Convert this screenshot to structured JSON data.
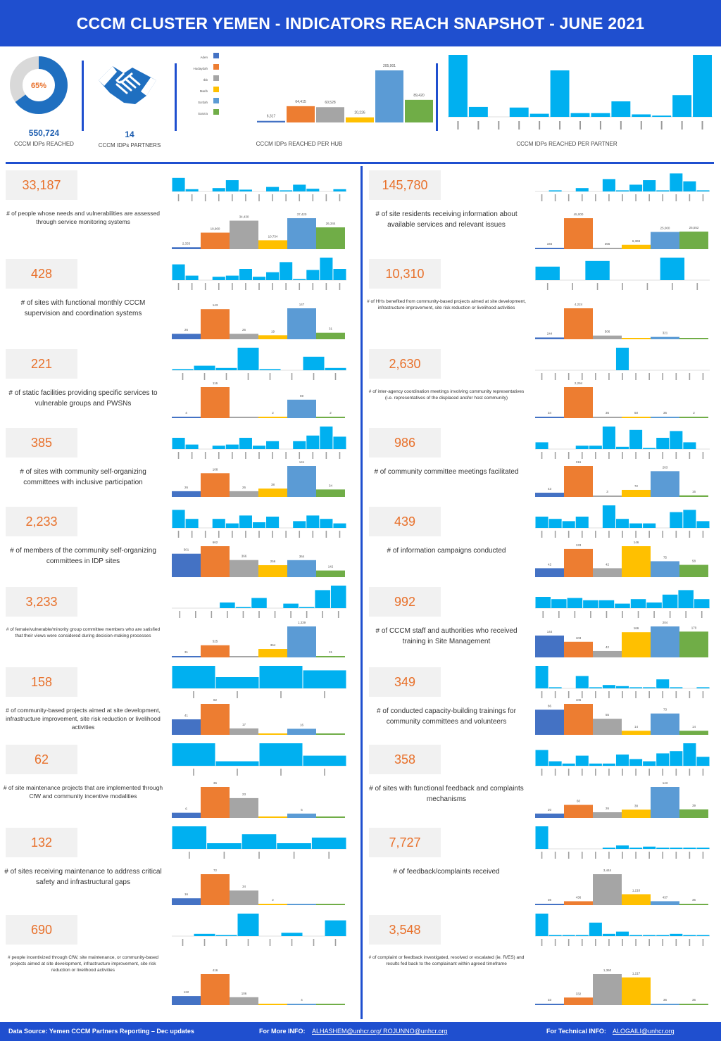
{
  "header": {
    "title": "CCCM CLUSTER YEMEN - INDICATORS REACH SNAPSHOT - JUNE 2021"
  },
  "summary": {
    "donut": {
      "percent_label": "65%",
      "fraction": 0.65,
      "fill": "#1f6fc0",
      "rest": "#d9d9d9"
    },
    "reached_value": "550,724",
    "reached_label": "CCCM IDPs REACHED",
    "partners_value": "14",
    "partners_label": "CCCM IDPs PARTNERS",
    "icon": "handshake-icon"
  },
  "hub_chart": {
    "caption": "CCCM IDPs REACHED PER HUB",
    "legend_labels": [
      "Aden",
      "Hudaydah",
      "Ibb",
      "Marib",
      "Sa'dah",
      "Sana'a"
    ],
    "chart_data": {
      "type": "bar",
      "categories": [
        "Aden",
        "Hudaydah",
        "Ibb",
        "Marib",
        "Sa'dah",
        "Sana'a"
      ],
      "values": [
        6317,
        64415,
        60528,
        20226,
        205901,
        89420
      ],
      "value_labels": [
        "6,317",
        "64,415",
        "60,528",
        "20,226",
        "205,901",
        "89,420"
      ],
      "colors": [
        "#4472c4",
        "#ed7d31",
        "#a5a5a5",
        "#ffc000",
        "#5b9bd5",
        "#70ad47"
      ]
    }
  },
  "partner_chart": {
    "caption": "CCCM IDPs REACHED PER PARTNER",
    "chart_data": {
      "type": "bar",
      "values": [
        100,
        16,
        0,
        15,
        5,
        75,
        6,
        6,
        25,
        4,
        2,
        35,
        100
      ],
      "color": "#00b0f0"
    }
  },
  "indicators": [
    {
      "value": "33,187",
      "desc": "# of people whose needs and vulnerabilities are assessed through service monitoring systems",
      "partners": [
        60,
        10,
        0,
        15,
        50,
        8,
        0,
        20,
        5,
        30,
        12,
        0,
        10
      ],
      "hubs": [
        2333,
        19960,
        34430,
        10734,
        37420,
        26344
      ],
      "hub_labels": [
        "2,333",
        "19,960",
        "34,430",
        "10,734",
        "37,420",
        "26,344"
      ]
    },
    {
      "value": "145,780",
      "desc": "# of site residents receiving information about available services and relevant issues",
      "partners": [
        0,
        5,
        0,
        15,
        0,
        55,
        5,
        30,
        50,
        5,
        80,
        45,
        5
      ],
      "hubs": [
        346,
        45000,
        356,
        6369,
        25000,
        25552
      ],
      "hub_labels": [
        "346",
        "45,000",
        "356",
        "6,369",
        "25,000",
        "25,552"
      ]
    },
    {
      "value": "428",
      "desc": "# of sites with functional monthly CCCM supervision and coordination systems",
      "partners": [
        70,
        20,
        0,
        15,
        20,
        50,
        15,
        35,
        80,
        5,
        45,
        100,
        50
      ],
      "hubs": [
        26,
        143,
        26,
        19,
        147,
        31
      ],
      "hub_labels": [
        "26",
        "143",
        "26",
        "19",
        "147",
        "31"
      ]
    },
    {
      "value": "10,310",
      "desc": "# of HHs benefited from community-based projects aimed at site development, infrastructure improvement, site risk reduction or livelihood activities",
      "partners": [
        60,
        0,
        85,
        0,
        0,
        100,
        0
      ],
      "hubs": [
        244,
        4224,
        506,
        0,
        321,
        0
      ],
      "hub_labels": [
        "244",
        "4,224",
        "506",
        "",
        "321",
        ""
      ]
    },
    {
      "value": "221",
      "desc": "# of static facilities providing specific services to vulnerable groups and PWSNs",
      "partners": [
        5,
        20,
        10,
        100,
        5,
        0,
        60,
        10
      ],
      "hubs": [
        4,
        116,
        0,
        2,
        69,
        2
      ],
      "hub_labels": [
        "4",
        "116",
        "",
        "2",
        "69",
        "2"
      ]
    },
    {
      "value": "2,630",
      "desc": "# of inter-agency coordination meetings involving community representatives (i.e. representatives of the displaced and/or host community)",
      "partners": [
        0,
        0,
        0,
        0,
        0,
        0,
        100,
        0,
        0,
        0,
        0,
        0,
        0
      ],
      "hubs": [
        34,
        2294,
        36,
        50,
        36,
        2
      ],
      "hub_labels": [
        "34",
        "2,294",
        "36",
        "50",
        "36",
        "2"
      ]
    },
    {
      "value": "385",
      "desc": "# of sites with community self-organizing committees with inclusive participation",
      "partners": [
        50,
        20,
        0,
        15,
        20,
        50,
        15,
        35,
        0,
        35,
        60,
        100,
        55
      ],
      "hubs": [
        26,
        108,
        26,
        38,
        141,
        34
      ],
      "hub_labels": [
        "26",
        "108",
        "26",
        "38",
        "141",
        "34"
      ]
    },
    {
      "value": "986",
      "desc": "# of community committee meetings facilitated",
      "partners": [
        30,
        0,
        0,
        15,
        15,
        100,
        10,
        85,
        5,
        50,
        80,
        30,
        0
      ],
      "hubs": [
        43,
        316,
        3,
        72,
        263,
        16
      ],
      "hub_labels": [
        "43",
        "316",
        "3",
        "72",
        "263",
        "16"
      ]
    },
    {
      "value": "2,233",
      "desc": "# of members of the community self-organizing committees in IDP sites",
      "partners": [
        80,
        40,
        0,
        40,
        20,
        55,
        25,
        50,
        0,
        30,
        55,
        40,
        20
      ],
      "hubs": [
        501,
        662,
        366,
        256,
        364,
        142
      ],
      "hub_labels": [
        "501",
        "662",
        "366",
        "256",
        "364",
        "142"
      ]
    },
    {
      "value": "439",
      "desc": "# of information campaigns conducted",
      "partners": [
        50,
        40,
        30,
        50,
        0,
        100,
        40,
        20,
        20,
        0,
        70,
        80,
        30
      ],
      "hubs": [
        42,
        133,
        42,
        146,
        75,
        58
      ],
      "hub_labels": [
        "42",
        "133",
        "42",
        "146",
        "75",
        "58"
      ]
    },
    {
      "value": "3,233",
      "desc": "# of female/vulnerable/minority group committee members who are satisfied that their views were considered during decision-making processes",
      "partners": [
        0,
        0,
        0,
        25,
        5,
        45,
        0,
        20,
        5,
        80,
        100
      ],
      "hubs": [
        31,
        525,
        0,
        364,
        1339,
        31
      ],
      "hub_labels": [
        "31",
        "525",
        "",
        "364",
        "1,339",
        "31"
      ]
    },
    {
      "value": "992",
      "desc": "# of CCCM staff and authorities who received training in Site Management",
      "partners": [
        50,
        40,
        45,
        35,
        35,
        20,
        40,
        25,
        60,
        80,
        40
      ],
      "hubs": [
        144,
        103,
        42,
        166,
        204,
        170
      ],
      "hub_labels": [
        "144",
        "103",
        "42",
        "166",
        "204",
        "170"
      ]
    },
    {
      "value": "158",
      "desc": "# of community-based projects aimed at site development, infrastructure improvement, site risk reduction or livelihood activities",
      "partners": [
        100,
        50,
        100,
        80
      ],
      "hubs": [
        41,
        82,
        17,
        0,
        16,
        0
      ],
      "hub_labels": [
        "41",
        "82",
        "17",
        "",
        "16",
        ""
      ]
    },
    {
      "value": "349",
      "desc": "# of conducted capacity-building trainings for community committees and volunteers",
      "partners": [
        100,
        5,
        0,
        55,
        5,
        15,
        10,
        5,
        5,
        40,
        5,
        0,
        5
      ],
      "hubs": [
        86,
        106,
        55,
        14,
        73,
        14
      ],
      "hub_labels": [
        "86",
        "106",
        "55",
        "14",
        "73",
        "14"
      ]
    },
    {
      "value": "62",
      "desc": "# of site maintenance projects that are implemented through CfW and community incentive modalities",
      "partners": [
        100,
        20,
        100,
        45
      ],
      "hubs": [
        6,
        36,
        23,
        0,
        5,
        0
      ],
      "hub_labels": [
        "6",
        "36",
        "23",
        "",
        "5",
        ""
      ]
    },
    {
      "value": "358",
      "desc": "# of sites with functional feedback and complaints mechanisms",
      "partners": [
        70,
        20,
        10,
        45,
        10,
        10,
        50,
        30,
        20,
        55,
        65,
        100,
        40
      ],
      "hubs": [
        20,
        60,
        26,
        38,
        143,
        39
      ],
      "hub_labels": [
        "20",
        "60",
        "26",
        "38",
        "143",
        "39"
      ]
    },
    {
      "value": "132",
      "desc": "# of sites receiving maintenance to address critical safety and infrastructural gaps",
      "partners": [
        100,
        25,
        65,
        25,
        50
      ],
      "hubs": [
        16,
        72,
        34,
        2,
        0,
        0
      ],
      "hub_labels": [
        "16",
        "72",
        "34",
        "2",
        "",
        ""
      ]
    },
    {
      "value": "7,727",
      "desc": "# of feedback/complaints received",
      "partners": [
        100,
        0,
        0,
        0,
        0,
        5,
        15,
        5,
        10,
        5,
        5,
        5,
        5
      ],
      "hubs": [
        36,
        436,
        3444,
        1216,
        437,
        36
      ],
      "hub_labels": [
        "36",
        "436",
        "3,444",
        "1,216",
        "437",
        "36"
      ]
    },
    {
      "value": "690",
      "desc": "# people incentivized through CfW, site maintenance, or community-based projects aimed at site development, infrastructure improvement, site risk reduction or livelihood activities",
      "partners": [
        0,
        10,
        5,
        100,
        0,
        15,
        0,
        70
      ],
      "hubs": [
        122,
        416,
        106,
        0,
        4,
        0
      ],
      "hub_labels": [
        "122",
        "416",
        "106",
        "",
        "4",
        ""
      ]
    },
    {
      "value": "3,548",
      "desc": "# of complaint or feedback investigated, resolved or escalated (ie. R/ES) and results fed back to the complainant within agreed timeframe",
      "partners": [
        100,
        5,
        5,
        5,
        60,
        10,
        20,
        5,
        5,
        5,
        10,
        5,
        5
      ],
      "hubs": [
        33,
        332,
        1360,
        1217,
        36,
        36
      ],
      "hub_labels": [
        "33",
        "332",
        "1,360",
        "1,217",
        "36",
        "36"
      ]
    }
  ],
  "colors": {
    "brand": "#1f4fcf",
    "value_orange": "#e8702a",
    "partner_bar": "#00b0f0",
    "hubs": [
      "#4472c4",
      "#ed7d31",
      "#a5a5a5",
      "#ffc000",
      "#5b9bd5",
      "#70ad47"
    ]
  },
  "footer": {
    "source": "Data Source: Yemen CCCM Partners Reporting – Dec updates",
    "more_label": "For More INFO:",
    "more_links": "ALHASHEM@unhcr.org/ ROJUNNO@unhcr.org",
    "tech_label": "For Technical INFO:",
    "tech_link": "ALOGAILI@unhcr.org"
  }
}
